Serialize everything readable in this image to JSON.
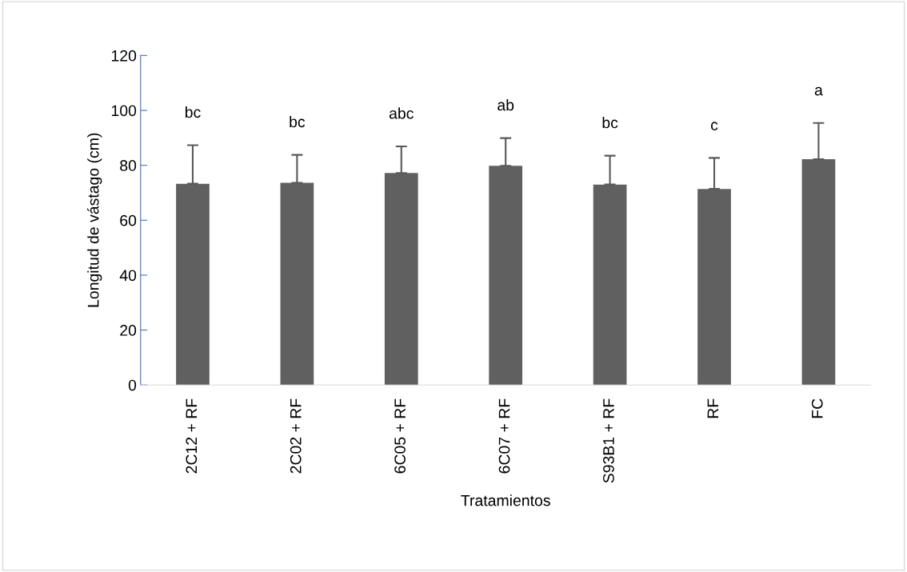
{
  "chart_data": {
    "type": "bar",
    "xlabel": "Tratamientos",
    "ylabel": "Longitud de vástago (cm)",
    "categories": [
      "2C12 + RF",
      "2C02 + RF",
      "6C05 + RF",
      "6C07 + RF",
      "S93B1 + RF",
      "RF",
      "FC"
    ],
    "values": [
      73.3,
      73.6,
      77.2,
      79.8,
      73.0,
      71.4,
      82.2
    ],
    "errors": [
      [
        73.3,
        87.3
      ],
      [
        73.6,
        83.8
      ],
      [
        77.2,
        86.9
      ],
      [
        79.8,
        89.9
      ],
      [
        73.0,
        83.5
      ],
      [
        71.4,
        82.7
      ],
      [
        82.2,
        95.4
      ]
    ],
    "color": "#606060",
    "ylim": [
      0,
      120
    ],
    "yticks": [
      0,
      20,
      40,
      60,
      80,
      100,
      120
    ],
    "grid": false,
    "legend": false,
    "annotations": [
      "bc",
      "bc",
      "abc",
      "ab",
      "bc",
      "c",
      "a"
    ]
  }
}
